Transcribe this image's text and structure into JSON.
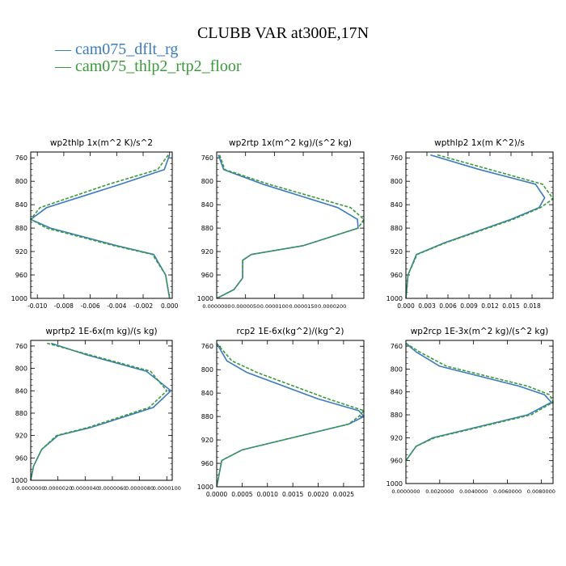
{
  "figure": {
    "title": "CLUBB VAR at300E,17N",
    "legend": [
      {
        "label": "cam075_dflt_rg",
        "color": "#3b7bbf"
      },
      {
        "label": "cam075_thlp2_rtp2_floor",
        "color": "#3a9a3a"
      }
    ]
  },
  "chart_data": [
    {
      "type": "line",
      "title": "wp2thlp   1x(m^2 K)/s^2",
      "xlim": [
        -0.0105,
        0.0002
      ],
      "ylim": [
        1000,
        750
      ],
      "xticks": [
        -0.01,
        -0.008,
        -0.006,
        -0.004,
        -0.002,
        0.0
      ],
      "xticklabels": [
        "-0.010",
        "-0.008",
        "-0.006",
        "-0.004",
        "-0.002",
        "0.000"
      ],
      "yticks": [
        760,
        800,
        840,
        880,
        920,
        960,
        1000
      ],
      "yticklabels": [
        "760",
        "800",
        "840",
        "880",
        "920",
        "960",
        "1000"
      ],
      "series": [
        {
          "name": "cam075_dflt_rg",
          "x": [
            0.0,
            -0.0004,
            -0.0037,
            -0.0093,
            -0.0105,
            -0.009,
            -0.004,
            -0.0012,
            -0.0003,
            0.0
          ],
          "y": [
            755,
            780,
            805,
            845,
            865,
            880,
            910,
            925,
            960,
            1000
          ]
        },
        {
          "name": "cam075_thlp2_rtp2_floor",
          "x": [
            -0.0001,
            -0.0009,
            -0.0046,
            -0.0098,
            -0.0105,
            -0.0093,
            -0.0042,
            -0.0013,
            -0.0003,
            0.0
          ],
          "y": [
            755,
            780,
            805,
            845,
            865,
            880,
            910,
            925,
            960,
            1000
          ]
        }
      ]
    },
    {
      "type": "line",
      "title": "wp2rtp   1x(m^2 kg)/(s^2 kg)",
      "xlim": [
        0,
        2.55e-05
      ],
      "ylim": [
        1000,
        750
      ],
      "xticks": [
        0,
        5e-06,
        1e-05,
        1.5e-05,
        2e-05
      ],
      "xticklabels": [
        "0.0000000",
        "0.0000050",
        "0.0000100",
        "0.0000150",
        "0.0000200"
      ],
      "yticks": [
        760,
        800,
        840,
        880,
        920,
        960,
        1000
      ],
      "yticklabels": [
        "760",
        "800",
        "840",
        "880",
        "920",
        "960",
        "1000"
      ],
      "series": [
        {
          "name": "cam075_dflt_rg",
          "x": [
            3e-07,
            1.2e-06,
            8e-06,
            2.1e-05,
            2.44e-05,
            2.45e-05,
            1.5e-05,
            6e-06,
            4.5e-06,
            4.5e-06,
            3e-06,
            0.0
          ],
          "y": [
            755,
            780,
            805,
            845,
            865,
            880,
            910,
            925,
            935,
            965,
            985,
            1000
          ]
        },
        {
          "name": "cam075_thlp2_rtp2_floor",
          "x": [
            5e-07,
            1.4e-06,
            9e-06,
            2.32e-05,
            2.55e-05,
            2.45e-05,
            1.5e-05,
            6e-06,
            4.5e-06,
            4.5e-06,
            3e-06,
            0.0
          ],
          "y": [
            755,
            780,
            805,
            845,
            865,
            880,
            910,
            925,
            935,
            965,
            985,
            1000
          ]
        }
      ]
    },
    {
      "type": "line",
      "title": "wpthlp2   1x(m K^2)/s",
      "xlim": [
        0,
        0.021
      ],
      "ylim": [
        1000,
        750
      ],
      "xticks": [
        0,
        0.003,
        0.006,
        0.009,
        0.012,
        0.015,
        0.018
      ],
      "xticklabels": [
        "0.000",
        "0.003",
        "0.006",
        "0.009",
        "0.012",
        "0.015",
        "0.018"
      ],
      "yticks": [
        760,
        800,
        840,
        880,
        920,
        960,
        1000
      ],
      "yticklabels": [
        "760",
        "800",
        "840",
        "880",
        "920",
        "960",
        "1000"
      ],
      "series": [
        {
          "name": "cam075_dflt_rg",
          "x": [
            0.0035,
            0.0105,
            0.0185,
            0.0198,
            0.019,
            0.015,
            0.0055,
            0.0015,
            0.0003,
            0.0
          ],
          "y": [
            755,
            780,
            805,
            828,
            845,
            865,
            905,
            925,
            960,
            1000
          ]
        },
        {
          "name": "cam075_thlp2_rtp2_floor",
          "x": [
            0.0045,
            0.012,
            0.0195,
            0.021,
            0.0192,
            0.0153,
            0.0057,
            0.0016,
            0.0003,
            0.0
          ],
          "y": [
            755,
            780,
            805,
            830,
            845,
            865,
            905,
            925,
            960,
            1000
          ]
        }
      ]
    },
    {
      "type": "line",
      "title": "wprtp2   1E-6x(m kg)/(s kg)",
      "xlim": [
        0,
        1.04e-05
      ],
      "ylim": [
        1000,
        750
      ],
      "xticks": [
        0,
        2e-06,
        4e-06,
        6e-06,
        8e-06,
        1e-05
      ],
      "xticklabels": [
        "0.0000000",
        "0.0000020",
        "0.0000040",
        "0.0000060",
        "0.0000080",
        "0.0000100"
      ],
      "yticks": [
        760,
        800,
        840,
        880,
        920,
        960,
        1000
      ],
      "yticklabels": [
        "760",
        "800",
        "840",
        "880",
        "920",
        "960",
        "1000"
      ],
      "series": [
        {
          "name": "cam075_dflt_rg",
          "x": [
            1.5e-06,
            4e-06,
            8.5e-06,
            1.03e-05,
            9e-06,
            4.5e-06,
            2e-06,
            8e-07,
            2e-07,
            0.0
          ],
          "y": [
            755,
            775,
            805,
            840,
            870,
            905,
            920,
            945,
            975,
            1000
          ]
        },
        {
          "name": "cam075_thlp2_rtp2_floor",
          "x": [
            1.2e-06,
            4.2e-06,
            8.8e-06,
            1e-05,
            8.7e-06,
            4.3e-06,
            1.9e-06,
            8e-07,
            2e-07,
            0.0
          ],
          "y": [
            755,
            775,
            805,
            840,
            870,
            905,
            920,
            945,
            975,
            1000
          ]
        }
      ]
    },
    {
      "type": "line",
      "title": "rcp2   1E-6x(kg^2)/(kg^2)",
      "xlim": [
        0,
        0.0029
      ],
      "ylim": [
        1000,
        750
      ],
      "xticks": [
        0,
        0.0005,
        0.001,
        0.0015,
        0.002,
        0.0025
      ],
      "xticklabels": [
        "0.0000",
        "0.0005",
        "0.0010",
        "0.0015",
        "0.0020",
        "0.0025"
      ],
      "yticks": [
        760,
        800,
        840,
        880,
        920,
        960,
        1000
      ],
      "yticklabels": [
        "760",
        "800",
        "840",
        "880",
        "920",
        "960",
        "1000"
      ],
      "series": [
        {
          "name": "cam075_dflt_rg",
          "x": [
            0.0,
            0.0002,
            0.0006,
            0.002,
            0.0028,
            0.0029,
            0.0026,
            0.0005,
            0.0001,
            0.0
          ],
          "y": [
            755,
            785,
            805,
            850,
            870,
            880,
            893,
            937,
            955,
            1000
          ]
        },
        {
          "name": "cam075_thlp2_rtp2_floor",
          "x": [
            0.0,
            0.0003,
            0.0008,
            0.0022,
            0.0029,
            0.0028,
            0.0026,
            0.0005,
            0.0001,
            0.0
          ],
          "y": [
            755,
            785,
            805,
            850,
            870,
            880,
            893,
            937,
            955,
            1000
          ]
        }
      ]
    },
    {
      "type": "line",
      "title": "wp2rcp   1E-3x(m^2 kg)/(s^2 kg)",
      "xlim": [
        0,
        0.0087
      ],
      "ylim": [
        1000,
        750
      ],
      "xticks": [
        0,
        0.002,
        0.004,
        0.006,
        0.008
      ],
      "xticklabels": [
        "0.0000000",
        "0.0020000",
        "0.0040000",
        "0.0060000",
        "0.0080000"
      ],
      "yticks": [
        760,
        800,
        840,
        880,
        920,
        960,
        1000
      ],
      "yticklabels": [
        "760",
        "800",
        "840",
        "880",
        "920",
        "960",
        "1000"
      ],
      "series": [
        {
          "name": "cam075_dflt_rg",
          "x": [
            0.0,
            0.0006,
            0.002,
            0.0067,
            0.0082,
            0.0086,
            0.0072,
            0.0016,
            0.0006,
            0.0
          ],
          "y": [
            755,
            770,
            795,
            830,
            845,
            858,
            880,
            920,
            935,
            960
          ]
        },
        {
          "name": "cam075_thlp2_rtp2_floor",
          "x": [
            0.0,
            0.0008,
            0.0024,
            0.0072,
            0.0085,
            0.0087,
            0.0074,
            0.0017,
            0.0006,
            0.0
          ],
          "y": [
            755,
            770,
            795,
            830,
            845,
            858,
            880,
            920,
            935,
            960
          ]
        }
      ]
    }
  ]
}
